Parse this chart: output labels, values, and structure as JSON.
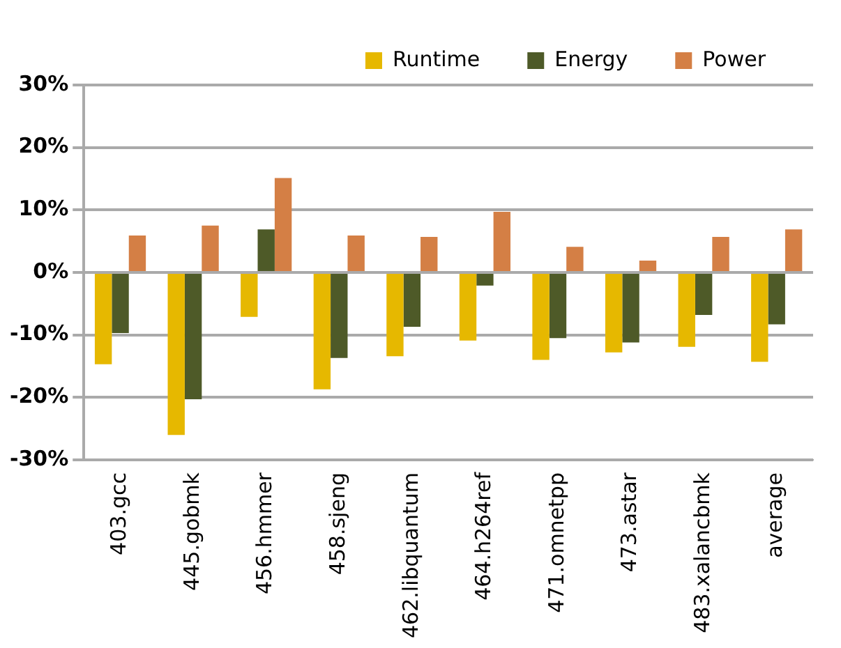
{
  "chart_data": {
    "type": "bar",
    "categories": [
      "403.gcc",
      "445.gobmk",
      "456.hmmer",
      "458.sjeng",
      "462.libquantum",
      "464.h264ref",
      "471.omnetpp",
      "473.astar",
      "483.xalancbmk",
      "average"
    ],
    "series": [
      {
        "name": "Runtime",
        "color": "#e6b800",
        "values": [
          -14.7,
          -26,
          -7.1,
          -18.7,
          -13.4,
          -10.9,
          -14,
          -12.8,
          -11.9,
          -14.3
        ]
      },
      {
        "name": "Energy",
        "color": "#4e5a28",
        "values": [
          -9.7,
          -20.3,
          6.9,
          -13.7,
          -8.7,
          -2.1,
          -10.5,
          -11.2,
          -6.8,
          -8.3
        ]
      },
      {
        "name": "Power",
        "color": "#d47f45",
        "values": [
          5.9,
          7.5,
          15.1,
          5.9,
          5.7,
          9.7,
          4.1,
          1.9,
          5.7,
          6.9
        ]
      }
    ],
    "ylim": [
      -30,
      30
    ],
    "yticks": [
      {
        "value": -30,
        "label": "-30%"
      },
      {
        "value": -20,
        "label": "-20%"
      },
      {
        "value": -10,
        "label": "-10%"
      },
      {
        "value": 0,
        "label": "0%"
      },
      {
        "value": 10,
        "label": "10%"
      },
      {
        "value": 20,
        "label": "20%"
      },
      {
        "value": 30,
        "label": "30%"
      }
    ],
    "grid": "y",
    "legend": "top right"
  }
}
